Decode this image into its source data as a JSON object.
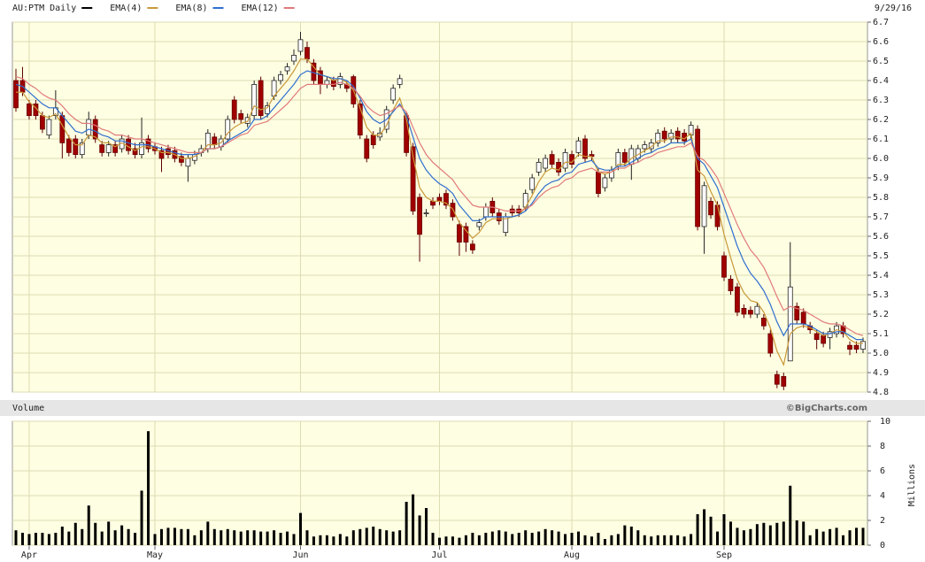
{
  "chart_data": [
    {
      "type": "candlestick",
      "title": "AU:PTM Daily",
      "date_label": "9/29/16",
      "color": "#000000",
      "up_color": "#ffffff",
      "down_color": "#a00000",
      "open": [
        6.4,
        6.4,
        6.28,
        6.28,
        6.22,
        6.12,
        6.22,
        6.22,
        6.1,
        6.1,
        6.02,
        6.12,
        6.2,
        6.07,
        6.03,
        6.07,
        6.05,
        6.1,
        6.05,
        6.02,
        6.1,
        6.06,
        6.04,
        6.05,
        6.04,
        6.01,
        5.96,
        5.99,
        6.03,
        6.05,
        6.11,
        6.06,
        6.1,
        6.3,
        6.23,
        6.18,
        6.22,
        6.4,
        6.23,
        6.32,
        6.4,
        6.45,
        6.5,
        6.55,
        6.57,
        6.49,
        6.45,
        6.38,
        6.4,
        6.38,
        6.38,
        6.42,
        6.28,
        6.1,
        6.12,
        6.11,
        6.15,
        6.3,
        6.38,
        6.22,
        6.06,
        5.8,
        5.72,
        5.78,
        5.8,
        5.82,
        5.77,
        5.66,
        5.65,
        5.56,
        5.65,
        5.7,
        5.78,
        5.72,
        5.62,
        5.74,
        5.74,
        5.75,
        5.84,
        5.93,
        5.95,
        6.02,
        5.98,
        5.95,
        6.02,
        6.03,
        6.1,
        6.02,
        5.93,
        5.85,
        5.9,
        5.96,
        6.03,
        5.97,
        6.0,
        6.05,
        6.05,
        6.08,
        6.14,
        6.1,
        6.14,
        6.13,
        6.12,
        6.15,
        5.65,
        5.78,
        5.76,
        5.5,
        5.38,
        5.34,
        5.23,
        5.22,
        5.2,
        5.18,
        5.1,
        4.89,
        4.88,
        4.96,
        5.24,
        5.21,
        5.14,
        5.1,
        5.09,
        5.08,
        5.1,
        5.14,
        5.04,
        5.04,
        5.02
      ],
      "high": [
        6.46,
        6.47,
        6.3,
        6.3,
        6.24,
        6.22,
        6.35,
        6.24,
        6.12,
        6.12,
        6.1,
        6.24,
        6.22,
        6.09,
        6.09,
        6.09,
        6.12,
        6.12,
        6.08,
        6.21,
        6.12,
        6.08,
        6.06,
        6.07,
        6.06,
        6.03,
        6.02,
        6.04,
        6.07,
        6.15,
        6.13,
        6.12,
        6.22,
        6.32,
        6.25,
        6.23,
        6.4,
        6.42,
        6.29,
        6.42,
        6.45,
        6.49,
        6.56,
        6.65,
        6.6,
        6.51,
        6.47,
        6.42,
        6.42,
        6.44,
        6.4,
        6.43,
        6.3,
        6.12,
        6.14,
        6.16,
        6.27,
        6.38,
        6.43,
        6.24,
        6.08,
        5.82,
        5.74,
        5.8,
        5.82,
        5.84,
        5.79,
        5.68,
        5.67,
        5.58,
        5.69,
        5.77,
        5.8,
        5.74,
        5.72,
        5.76,
        5.76,
        5.84,
        5.92,
        6.0,
        6.02,
        6.04,
        6.0,
        6.05,
        6.04,
        6.11,
        6.12,
        6.04,
        5.95,
        5.92,
        5.96,
        6.05,
        6.05,
        6.07,
        6.07,
        6.09,
        6.1,
        6.15,
        6.16,
        6.15,
        6.16,
        6.15,
        6.19,
        6.17,
        5.88,
        5.8,
        5.78,
        5.52,
        5.4,
        5.36,
        5.25,
        5.24,
        5.26,
        5.2,
        5.12,
        4.91,
        4.9,
        5.57,
        5.26,
        5.23,
        5.16,
        5.12,
        5.11,
        5.13,
        5.16,
        5.16,
        5.06,
        5.06,
        5.08
      ],
      "low": [
        6.24,
        6.32,
        6.2,
        6.2,
        6.13,
        6.1,
        6.2,
        6.0,
        6.01,
        6.0,
        6.0,
        6.1,
        6.08,
        6.01,
        6.01,
        6.01,
        6.03,
        6.02,
        6.0,
        6.0,
        6.03,
        6.02,
        5.93,
        6.0,
        5.98,
        5.96,
        5.88,
        5.97,
        6.01,
        6.03,
        6.05,
        6.04,
        6.08,
        6.18,
        6.18,
        6.16,
        6.2,
        6.2,
        6.21,
        6.3,
        6.38,
        6.43,
        6.48,
        6.53,
        6.49,
        6.38,
        6.33,
        6.36,
        6.35,
        6.36,
        6.34,
        6.26,
        6.1,
        5.98,
        6.05,
        6.09,
        6.13,
        6.28,
        6.36,
        6.01,
        5.71,
        5.47,
        5.7,
        5.74,
        5.76,
        5.74,
        5.68,
        5.5,
        5.52,
        5.51,
        5.63,
        5.68,
        5.7,
        5.66,
        5.6,
        5.7,
        5.7,
        5.73,
        5.82,
        5.91,
        5.93,
        5.95,
        5.91,
        5.93,
        5.95,
        6.01,
        5.98,
        5.99,
        5.8,
        5.83,
        5.88,
        5.94,
        5.96,
        5.89,
        5.98,
        6.03,
        6.03,
        6.06,
        6.08,
        6.08,
        6.08,
        6.07,
        6.1,
        5.63,
        5.51,
        5.69,
        5.63,
        5.37,
        5.3,
        5.19,
        5.18,
        5.18,
        5.18,
        5.12,
        4.98,
        4.82,
        4.81,
        4.96,
        5.15,
        5.13,
        5.1,
        5.02,
        5.03,
        5.02,
        5.08,
        5.08,
        4.99,
        5.0,
        5.0
      ],
      "close": [
        6.26,
        6.34,
        6.22,
        6.22,
        6.15,
        6.2,
        6.26,
        6.08,
        6.03,
        6.02,
        6.08,
        6.2,
        6.1,
        6.03,
        6.07,
        6.03,
        6.1,
        6.04,
        6.02,
        6.08,
        6.05,
        6.04,
        6.0,
        6.02,
        6.0,
        5.98,
        6.0,
        6.02,
        6.05,
        6.13,
        6.07,
        6.1,
        6.2,
        6.2,
        6.2,
        6.21,
        6.38,
        6.22,
        6.27,
        6.4,
        6.43,
        6.47,
        6.53,
        6.61,
        6.51,
        6.4,
        6.38,
        6.4,
        6.37,
        6.42,
        6.36,
        6.28,
        6.12,
        6.0,
        6.07,
        6.13,
        6.25,
        6.36,
        6.41,
        6.03,
        5.73,
        5.61,
        5.72,
        5.76,
        5.78,
        5.76,
        5.7,
        5.57,
        5.57,
        5.53,
        5.67,
        5.75,
        5.72,
        5.68,
        5.7,
        5.72,
        5.72,
        5.82,
        5.9,
        5.98,
        6.0,
        5.97,
        5.93,
        6.03,
        5.97,
        6.09,
        6.0,
        6.01,
        5.82,
        5.9,
        5.94,
        6.03,
        5.98,
        6.05,
        6.05,
        6.07,
        6.08,
        6.13,
        6.1,
        6.13,
        6.1,
        6.09,
        6.17,
        5.65,
        5.86,
        5.71,
        5.65,
        5.39,
        5.32,
        5.21,
        5.2,
        5.2,
        5.24,
        5.14,
        5.0,
        4.84,
        4.83,
        5.34,
        5.17,
        5.15,
        5.12,
        5.07,
        5.05,
        5.11,
        5.14,
        5.1,
        5.02,
        5.02,
        5.06
      ],
      "overlays": [
        {
          "name": "EMA(4)",
          "color": "#c9993a",
          "values": [
            6.34,
            6.34,
            6.29,
            6.26,
            6.22,
            6.21,
            6.23,
            6.17,
            6.11,
            6.07,
            6.07,
            6.12,
            6.11,
            6.08,
            6.08,
            6.06,
            6.08,
            6.06,
            6.04,
            6.06,
            6.06,
            6.05,
            6.03,
            6.03,
            6.02,
            6.0,
            6.0,
            6.01,
            6.03,
            6.07,
            6.07,
            6.08,
            6.13,
            6.16,
            6.18,
            6.19,
            6.27,
            6.25,
            6.26,
            6.32,
            6.36,
            6.4,
            6.45,
            6.51,
            6.51,
            6.47,
            6.43,
            6.42,
            6.4,
            6.41,
            6.39,
            6.35,
            6.26,
            6.16,
            6.12,
            6.12,
            6.17,
            6.25,
            6.31,
            6.2,
            6.01,
            5.85,
            5.8,
            5.78,
            5.78,
            5.77,
            5.74,
            5.67,
            5.63,
            5.59,
            5.62,
            5.67,
            5.69,
            5.69,
            5.69,
            5.7,
            5.71,
            5.75,
            5.81,
            5.88,
            5.93,
            5.95,
            5.94,
            5.98,
            5.98,
            6.02,
            6.01,
            6.01,
            5.93,
            5.92,
            5.93,
            5.97,
            5.97,
            6.0,
            6.02,
            6.04,
            6.06,
            6.09,
            6.09,
            6.11,
            6.11,
            6.1,
            6.13,
            5.94,
            5.91,
            5.83,
            5.76,
            5.61,
            5.49,
            5.38,
            5.31,
            5.27,
            5.26,
            5.21,
            5.13,
            5.01,
            4.94,
            5.1,
            5.13,
            5.14,
            5.13,
            5.11,
            5.09,
            5.1,
            5.12,
            5.11,
            5.07,
            5.05,
            5.05
          ]
        },
        {
          "name": "EMA(8)",
          "color": "#2f6fd0",
          "values": [
            6.38,
            6.37,
            6.34,
            6.31,
            6.28,
            6.26,
            6.26,
            6.22,
            6.18,
            6.14,
            6.13,
            6.15,
            6.14,
            6.12,
            6.11,
            6.09,
            6.09,
            6.08,
            6.07,
            6.07,
            6.07,
            6.06,
            6.05,
            6.04,
            6.03,
            6.02,
            6.02,
            6.02,
            6.03,
            6.05,
            6.05,
            6.06,
            6.09,
            6.11,
            6.13,
            6.15,
            6.2,
            6.2,
            6.22,
            6.26,
            6.3,
            6.34,
            6.38,
            6.43,
            6.45,
            6.44,
            6.43,
            6.42,
            6.41,
            6.41,
            6.4,
            6.37,
            6.31,
            6.24,
            6.2,
            6.18,
            6.2,
            6.24,
            6.28,
            6.22,
            6.11,
            6.0,
            5.94,
            5.9,
            5.87,
            5.85,
            5.82,
            5.76,
            5.72,
            5.68,
            5.68,
            5.7,
            5.7,
            5.7,
            5.7,
            5.7,
            5.71,
            5.73,
            5.77,
            5.82,
            5.86,
            5.88,
            5.89,
            5.92,
            5.93,
            5.97,
            5.98,
            5.99,
            5.95,
            5.94,
            5.94,
            5.96,
            5.96,
            5.98,
            6.0,
            6.02,
            6.03,
            6.05,
            6.06,
            6.08,
            6.08,
            6.08,
            6.1,
            6.0,
            5.97,
            5.91,
            5.85,
            5.75,
            5.65,
            5.55,
            5.47,
            5.41,
            5.37,
            5.32,
            5.25,
            5.16,
            5.09,
            5.15,
            5.15,
            5.15,
            5.14,
            5.12,
            5.1,
            5.1,
            5.11,
            5.11,
            5.09,
            5.07,
            5.07
          ]
        },
        {
          "name": "EMA(12)",
          "color": "#e07a7a",
          "values": [
            6.42,
            6.41,
            6.38,
            6.36,
            6.33,
            6.31,
            6.3,
            6.27,
            6.23,
            6.2,
            6.18,
            6.18,
            6.17,
            6.15,
            6.14,
            6.12,
            6.12,
            6.11,
            6.1,
            6.1,
            6.09,
            6.08,
            6.07,
            6.06,
            6.05,
            6.04,
            6.03,
            6.03,
            6.03,
            6.05,
            6.05,
            6.06,
            6.08,
            6.1,
            6.12,
            6.13,
            6.17,
            6.18,
            6.19,
            6.22,
            6.25,
            6.28,
            6.32,
            6.36,
            6.38,
            6.38,
            6.38,
            6.38,
            6.38,
            6.39,
            6.38,
            6.36,
            6.32,
            6.27,
            6.24,
            6.22,
            6.23,
            6.25,
            6.27,
            6.24,
            6.16,
            6.08,
            6.02,
            5.98,
            5.95,
            5.92,
            5.89,
            5.84,
            5.8,
            5.76,
            5.75,
            5.75,
            5.75,
            5.74,
            5.73,
            5.73,
            5.73,
            5.74,
            5.76,
            5.8,
            5.83,
            5.85,
            5.86,
            5.89,
            5.9,
            5.93,
            5.94,
            5.95,
            5.93,
            5.93,
            5.93,
            5.95,
            5.95,
            5.97,
            5.98,
            6.0,
            6.01,
            6.03,
            6.04,
            6.05,
            6.06,
            6.06,
            6.08,
            6.01,
            5.99,
            5.95,
            5.9,
            5.82,
            5.74,
            5.66,
            5.59,
            5.53,
            5.49,
            5.44,
            5.37,
            5.29,
            5.22,
            5.24,
            5.23,
            5.22,
            5.2,
            5.18,
            5.16,
            5.15,
            5.15,
            5.14,
            5.12,
            5.1,
            5.09
          ]
        }
      ],
      "ylim": [
        4.8,
        6.7
      ],
      "yticks": [
        4.8,
        4.9,
        {
          "value": 5.0,
          "label": "5.0"
        },
        5.1,
        5.2,
        5.3,
        5.4,
        5.5,
        5.6,
        5.7,
        5.8,
        5.9,
        {
          "value": 6.0,
          "label": "6.0"
        },
        6.1,
        6.2,
        6.3,
        6.4,
        6.5,
        6.6,
        6.7
      ],
      "grid": true
    },
    {
      "type": "bar",
      "title": "Volume",
      "credit": "©BigCharts.com",
      "ylabel": "Millions",
      "color": "#000000",
      "categories": [
        null,
        null,
        "Apr",
        null,
        null,
        null,
        null,
        null,
        null,
        null,
        null,
        null,
        null,
        null,
        null,
        null,
        null,
        null,
        null,
        null,
        null,
        "May",
        null,
        null,
        null,
        null,
        null,
        null,
        null,
        null,
        null,
        null,
        null,
        null,
        null,
        null,
        null,
        null,
        null,
        null,
        null,
        null,
        null,
        "Jun",
        null,
        null,
        null,
        null,
        null,
        null,
        null,
        null,
        null,
        null,
        null,
        null,
        null,
        null,
        null,
        null,
        null,
        null,
        null,
        null,
        "Jul",
        null,
        null,
        null,
        null,
        null,
        null,
        null,
        null,
        null,
        null,
        null,
        null,
        null,
        null,
        null,
        null,
        null,
        null,
        null,
        "Aug",
        null,
        null,
        null,
        null,
        null,
        null,
        null,
        null,
        null,
        null,
        null,
        null,
        null,
        null,
        null,
        null,
        null,
        null,
        null,
        null,
        null,
        null,
        "Sep",
        null,
        null,
        null,
        null,
        null,
        null,
        null,
        null,
        null,
        null,
        null,
        null,
        null,
        null,
        null,
        null,
        null,
        null,
        null,
        null,
        null
      ],
      "values": [
        1.2,
        1.0,
        0.9,
        1.0,
        1.0,
        0.9,
        1.0,
        1.5,
        1.1,
        1.8,
        1.3,
        3.2,
        1.8,
        1.1,
        1.9,
        1.2,
        1.6,
        1.3,
        1.0,
        4.4,
        9.2,
        0.9,
        1.3,
        1.4,
        1.4,
        1.3,
        1.3,
        0.8,
        1.2,
        1.9,
        1.3,
        1.2,
        1.3,
        1.2,
        1.1,
        1.2,
        1.2,
        1.1,
        1.1,
        1.2,
        1.0,
        1.1,
        0.9,
        2.6,
        1.2,
        0.7,
        0.8,
        0.8,
        0.7,
        0.9,
        0.7,
        1.2,
        1.3,
        1.4,
        1.5,
        1.3,
        1.2,
        1.1,
        1.2,
        3.5,
        4.1,
        2.4,
        3.0,
        1.0,
        0.6,
        0.7,
        0.7,
        0.6,
        0.8,
        1.0,
        0.8,
        1.0,
        1.1,
        1.2,
        1.1,
        0.9,
        1.0,
        1.2,
        1.0,
        1.1,
        1.3,
        1.2,
        1.1,
        0.9,
        1.0,
        1.1,
        0.8,
        0.7,
        1.0,
        0.5,
        0.8,
        0.9,
        1.6,
        1.5,
        1.2,
        0.8,
        0.7,
        0.8,
        0.8,
        0.8,
        0.8,
        0.7,
        0.9,
        2.5,
        2.9,
        2.3,
        1.1,
        2.5,
        1.9,
        1.4,
        1.2,
        1.3,
        1.7,
        1.8,
        1.6,
        1.8,
        1.9,
        4.8,
        2.0,
        1.9,
        0.8,
        1.3,
        1.1,
        1.3,
        1.4,
        0.8,
        1.2,
        1.4,
        1.4
      ],
      "ylim": [
        0,
        10
      ],
      "yticks": [
        0,
        2,
        4,
        6,
        8,
        10
      ],
      "grid": true
    }
  ]
}
